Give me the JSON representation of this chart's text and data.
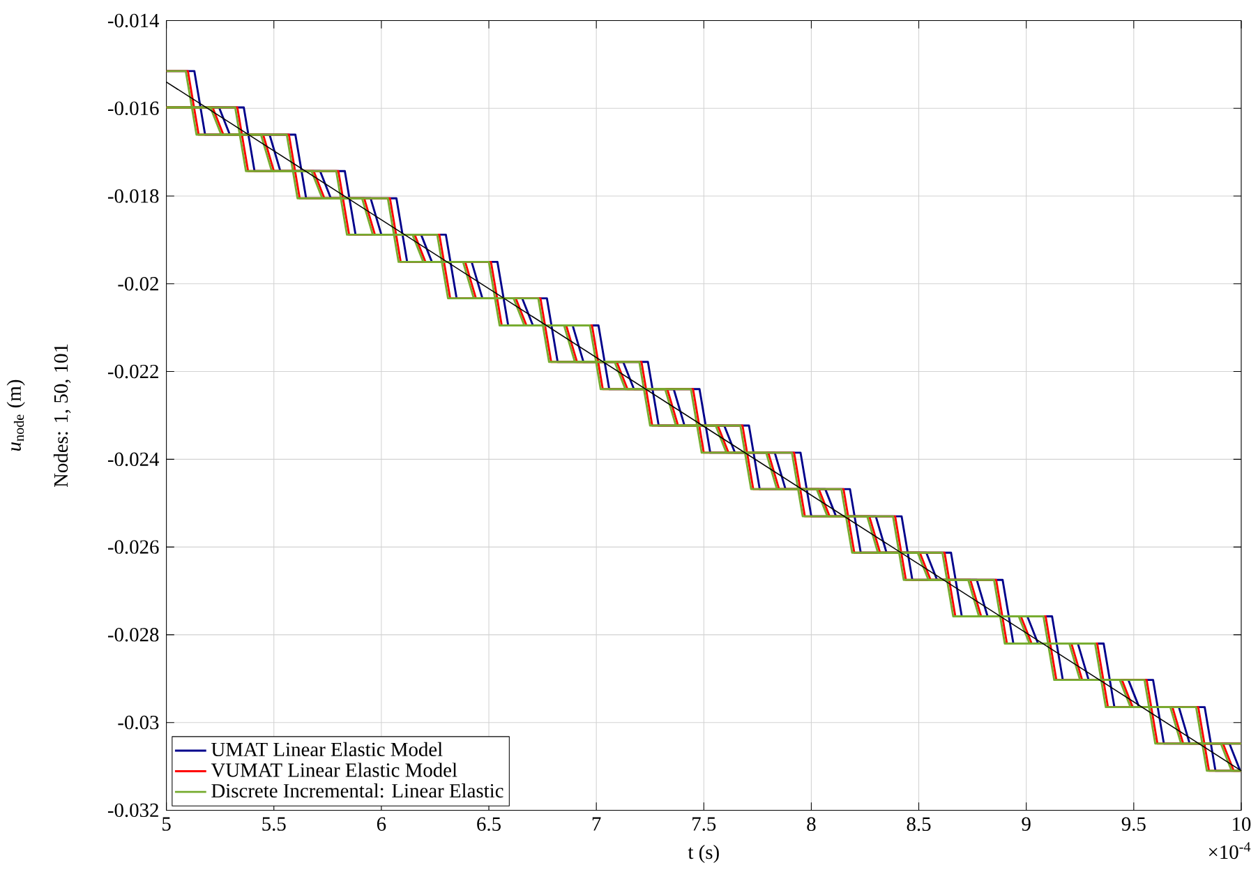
{
  "chart_data": {
    "type": "line",
    "xlabel": "t (s)",
    "ylabel": "*u*$_{node}$ (m)",
    "annotations": [
      "Nodes: 1, 50, 101",
      "×10$^{-4}$"
    ],
    "xlim": [
      5,
      10
    ],
    "ylim": [
      -0.032,
      -0.014
    ],
    "xticks": [
      5,
      5.5,
      6,
      6.5,
      7,
      7.5,
      8,
      8.5,
      9,
      9.5,
      10
    ],
    "yticks": [
      -0.032,
      -0.03,
      -0.028,
      -0.026,
      -0.024,
      -0.022,
      -0.02,
      -0.018,
      -0.016,
      -0.014
    ],
    "grid": true,
    "legend": "bottom left",
    "series": [
      {
        "name": "UMAT Linear Elastic Model",
        "color": "#00008b",
        "x": [
          5.0,
          5.13,
          5.18,
          5.6,
          5.65,
          6.07,
          6.12,
          6.54,
          6.59,
          7.01,
          7.06,
          7.48,
          7.53,
          7.95,
          8.0,
          8.42,
          8.47,
          8.89,
          8.94,
          9.36,
          9.41,
          9.83,
          9.88,
          10.0
        ],
        "values": [
          -0.01515,
          -0.01515,
          -0.0166,
          -0.0166,
          -0.01805,
          -0.01805,
          -0.0195,
          -0.0195,
          -0.02095,
          -0.02095,
          -0.0224,
          -0.0224,
          -0.02385,
          -0.02385,
          -0.0253,
          -0.0253,
          -0.02675,
          -0.02675,
          -0.0282,
          -0.0282,
          -0.02965,
          -0.02965,
          -0.0311,
          -0.0311
        ]
      },
      {
        "color": "#00008b",
        "x": [
          5.0,
          5.36,
          5.41,
          5.83,
          5.88,
          6.3,
          6.35,
          6.77,
          6.82,
          7.24,
          7.29,
          7.71,
          7.76,
          8.18,
          8.23,
          8.65,
          8.7,
          9.12,
          9.17,
          9.59,
          9.64,
          10.0
        ],
        "values": [
          -0.01598,
          -0.01598,
          -0.01743,
          -0.01743,
          -0.01888,
          -0.01888,
          -0.02033,
          -0.02033,
          -0.02178,
          -0.02178,
          -0.02323,
          -0.02323,
          -0.02468,
          -0.02468,
          -0.02613,
          -0.02613,
          -0.02758,
          -0.02758,
          -0.02903,
          -0.02903,
          -0.03048,
          -0.03048
        ]
      },
      {
        "color": "#00008b",
        "x": [
          5.0,
          5.245,
          5.295,
          5.48,
          5.53,
          5.715,
          5.765,
          5.95,
          6.0,
          6.185,
          6.235,
          6.42,
          6.47,
          6.655,
          6.705,
          6.89,
          6.94,
          7.125,
          7.175,
          7.36,
          7.41,
          7.595,
          7.645,
          7.83,
          7.88,
          8.065,
          8.115,
          8.3,
          8.35,
          8.535,
          8.585,
          8.77,
          8.82,
          9.005,
          9.055,
          9.24,
          9.29,
          9.475,
          9.525,
          9.71,
          9.76,
          9.945,
          9.995,
          10.0
        ],
        "values": [
          -0.01598,
          -0.01598,
          -0.0166,
          -0.0166,
          -0.01743,
          -0.01743,
          -0.01805,
          -0.01805,
          -0.01888,
          -0.01888,
          -0.0195,
          -0.0195,
          -0.02033,
          -0.02033,
          -0.02095,
          -0.02095,
          -0.02178,
          -0.02178,
          -0.0224,
          -0.0224,
          -0.02323,
          -0.02323,
          -0.02385,
          -0.02385,
          -0.02468,
          -0.02468,
          -0.0253,
          -0.0253,
          -0.02613,
          -0.02613,
          -0.02675,
          -0.02675,
          -0.02758,
          -0.02758,
          -0.0282,
          -0.0282,
          -0.02903,
          -0.02903,
          -0.02965,
          -0.02965,
          -0.03048,
          -0.03048,
          -0.0311,
          -0.0311
        ]
      },
      {
        "name": "VUMAT Linear Elastic Model",
        "color": "#ff0000",
        "x": [
          5.0,
          5.1,
          5.15,
          5.57,
          5.62,
          6.04,
          6.09,
          6.51,
          6.56,
          6.98,
          7.03,
          7.45,
          7.5,
          7.92,
          7.97,
          8.39,
          8.44,
          8.86,
          8.91,
          9.33,
          9.38,
          9.8,
          9.85,
          10.0
        ],
        "values": [
          -0.01515,
          -0.01515,
          -0.0166,
          -0.0166,
          -0.01805,
          -0.01805,
          -0.0195,
          -0.0195,
          -0.02095,
          -0.02095,
          -0.0224,
          -0.0224,
          -0.02385,
          -0.02385,
          -0.0253,
          -0.0253,
          -0.02675,
          -0.02675,
          -0.0282,
          -0.0282,
          -0.02965,
          -0.02965,
          -0.0311,
          -0.0311
        ]
      },
      {
        "color": "#ff0000",
        "x": [
          5.0,
          5.33,
          5.38,
          5.8,
          5.85,
          6.27,
          6.32,
          6.74,
          6.79,
          7.21,
          7.26,
          7.68,
          7.73,
          8.15,
          8.2,
          8.62,
          8.67,
          9.09,
          9.14,
          9.56,
          9.61,
          10.0
        ],
        "values": [
          -0.01598,
          -0.01598,
          -0.01743,
          -0.01743,
          -0.01888,
          -0.01888,
          -0.02033,
          -0.02033,
          -0.02178,
          -0.02178,
          -0.02323,
          -0.02323,
          -0.02468,
          -0.02468,
          -0.02613,
          -0.02613,
          -0.02758,
          -0.02758,
          -0.02903,
          -0.02903,
          -0.03048,
          -0.03048
        ]
      },
      {
        "color": "#ff0000",
        "x": [
          5.0,
          5.215,
          5.265,
          5.45,
          5.5,
          5.685,
          5.735,
          5.92,
          5.97,
          6.155,
          6.205,
          6.39,
          6.44,
          6.625,
          6.675,
          6.86,
          6.91,
          7.095,
          7.145,
          7.33,
          7.38,
          7.565,
          7.615,
          7.8,
          7.85,
          8.035,
          8.085,
          8.27,
          8.32,
          8.505,
          8.555,
          8.74,
          8.79,
          8.975,
          9.025,
          9.21,
          9.26,
          9.445,
          9.495,
          9.68,
          9.73,
          9.915,
          9.965,
          10.0
        ],
        "values": [
          -0.01598,
          -0.01598,
          -0.0166,
          -0.0166,
          -0.01743,
          -0.01743,
          -0.01805,
          -0.01805,
          -0.01888,
          -0.01888,
          -0.0195,
          -0.0195,
          -0.02033,
          -0.02033,
          -0.02095,
          -0.02095,
          -0.02178,
          -0.02178,
          -0.0224,
          -0.0224,
          -0.02323,
          -0.02323,
          -0.02385,
          -0.02385,
          -0.02468,
          -0.02468,
          -0.0253,
          -0.0253,
          -0.02613,
          -0.02613,
          -0.02675,
          -0.02675,
          -0.02758,
          -0.02758,
          -0.0282,
          -0.0282,
          -0.02903,
          -0.02903,
          -0.02965,
          -0.02965,
          -0.03048,
          -0.03048,
          -0.0311,
          -0.0311
        ]
      },
      {
        "name": "Discrete Incremental: Linear Elastic",
        "color": "#77ac30",
        "x": [
          5.0,
          5.09,
          5.14,
          5.56,
          5.61,
          6.03,
          6.08,
          6.5,
          6.55,
          6.97,
          7.02,
          7.44,
          7.49,
          7.91,
          7.96,
          8.38,
          8.43,
          8.85,
          8.9,
          9.32,
          9.37,
          9.79,
          9.84,
          10.0
        ],
        "values": [
          -0.01515,
          -0.01515,
          -0.0166,
          -0.0166,
          -0.01805,
          -0.01805,
          -0.0195,
          -0.0195,
          -0.02095,
          -0.02095,
          -0.0224,
          -0.0224,
          -0.02385,
          -0.02385,
          -0.0253,
          -0.0253,
          -0.02675,
          -0.02675,
          -0.0282,
          -0.0282,
          -0.02965,
          -0.02965,
          -0.0311,
          -0.0311
        ]
      },
      {
        "color": "#77ac30",
        "x": [
          5.0,
          5.32,
          5.37,
          5.79,
          5.84,
          6.26,
          6.31,
          6.73,
          6.78,
          7.2,
          7.25,
          7.67,
          7.72,
          8.14,
          8.19,
          8.61,
          8.66,
          9.08,
          9.13,
          9.55,
          9.6,
          10.0
        ],
        "values": [
          -0.01598,
          -0.01598,
          -0.01743,
          -0.01743,
          -0.01888,
          -0.01888,
          -0.02033,
          -0.02033,
          -0.02178,
          -0.02178,
          -0.02323,
          -0.02323,
          -0.02468,
          -0.02468,
          -0.02613,
          -0.02613,
          -0.02758,
          -0.02758,
          -0.02903,
          -0.02903,
          -0.03048,
          -0.03048
        ]
      },
      {
        "color": "#77ac30",
        "x": [
          5.0,
          5.205,
          5.255,
          5.44,
          5.49,
          5.675,
          5.725,
          5.91,
          5.96,
          6.145,
          6.195,
          6.38,
          6.43,
          6.615,
          6.665,
          6.85,
          6.9,
          7.085,
          7.135,
          7.32,
          7.37,
          7.555,
          7.605,
          7.79,
          7.84,
          8.025,
          8.075,
          8.26,
          8.31,
          8.495,
          8.545,
          8.73,
          8.78,
          8.965,
          9.015,
          9.2,
          9.25,
          9.435,
          9.485,
          9.67,
          9.72,
          9.905,
          9.955,
          10.0
        ],
        "values": [
          -0.01598,
          -0.01598,
          -0.0166,
          -0.0166,
          -0.01743,
          -0.01743,
          -0.01805,
          -0.01805,
          -0.01888,
          -0.01888,
          -0.0195,
          -0.0195,
          -0.02033,
          -0.02033,
          -0.02095,
          -0.02095,
          -0.02178,
          -0.02178,
          -0.0224,
          -0.0224,
          -0.02323,
          -0.02323,
          -0.02385,
          -0.02385,
          -0.02468,
          -0.02468,
          -0.0253,
          -0.0253,
          -0.02613,
          -0.02613,
          -0.02675,
          -0.02675,
          -0.02758,
          -0.02758,
          -0.0282,
          -0.0282,
          -0.02903,
          -0.02903,
          -0.02965,
          -0.02965,
          -0.03048,
          -0.03048,
          -0.0311,
          -0.0311
        ]
      },
      {
        "color": "#000000",
        "x": [
          5.0,
          10.0
        ],
        "values": [
          -0.0154,
          -0.0311
        ]
      }
    ]
  }
}
